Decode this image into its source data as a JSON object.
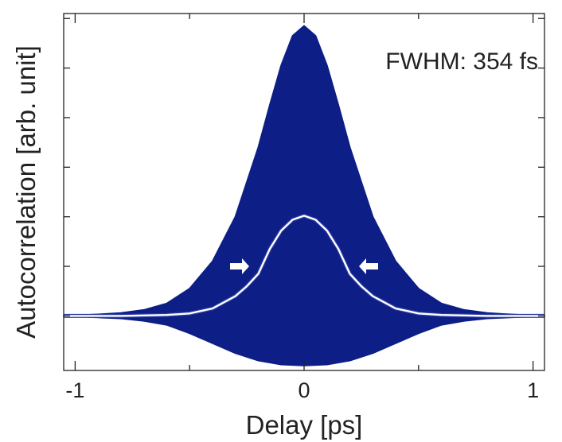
{
  "chart_data": {
    "type": "area",
    "title": "",
    "xlabel": "Delay [ps]",
    "ylabel": "Autocorrelation [arb. unit]",
    "xlim": [
      -1.05,
      1.05
    ],
    "ylim": [
      -0.1,
      7.1
    ],
    "x_ticks": [
      -1,
      0,
      1
    ],
    "x_tick_labels": [
      "-1",
      "0",
      "1"
    ],
    "y_ticks": [
      1,
      2,
      3,
      4,
      5,
      6,
      7
    ],
    "y_tick_labels_visible": false,
    "grid": false,
    "legend": "none",
    "annotation": "FWHM: 354 fs",
    "fwhm_fs": 354,
    "colors": {
      "fringe_fill": "#0d1f86",
      "envelope_line": "#ffffff",
      "arrows": "#ffffff",
      "axis": "#222222"
    },
    "series": [
      {
        "kind": "interferometric-envelope-upper",
        "x": [
          -1.05,
          -0.9,
          -0.8,
          -0.7,
          -0.6,
          -0.5,
          -0.4,
          -0.3,
          -0.2,
          -0.15,
          -0.1,
          -0.05,
          0,
          0.05,
          0.1,
          0.15,
          0.2,
          0.3,
          0.4,
          0.5,
          0.6,
          0.7,
          0.8,
          0.9,
          1.05
        ],
        "y": [
          1.0,
          1.03,
          1.06,
          1.12,
          1.25,
          1.55,
          2.1,
          3.0,
          4.4,
          5.25,
          6.05,
          6.65,
          6.85,
          6.65,
          6.05,
          5.25,
          4.4,
          3.0,
          2.1,
          1.55,
          1.25,
          1.12,
          1.06,
          1.03,
          1.0
        ]
      },
      {
        "kind": "interferometric-envelope-lower",
        "x": [
          -1.05,
          -0.9,
          -0.8,
          -0.7,
          -0.6,
          -0.5,
          -0.4,
          -0.3,
          -0.2,
          -0.1,
          0,
          0.1,
          0.2,
          0.3,
          0.4,
          0.5,
          0.6,
          0.7,
          0.8,
          0.9,
          1.05
        ],
        "y": [
          1.0,
          0.97,
          0.95,
          0.9,
          0.82,
          0.65,
          0.45,
          0.25,
          0.1,
          0.02,
          0.0,
          0.02,
          0.1,
          0.25,
          0.45,
          0.65,
          0.82,
          0.9,
          0.95,
          0.97,
          1.0
        ]
      },
      {
        "kind": "intensity-autocorrelation-fit",
        "x": [
          -1.05,
          -0.9,
          -0.8,
          -0.7,
          -0.6,
          -0.5,
          -0.4,
          -0.3,
          -0.25,
          -0.2,
          -0.15,
          -0.1,
          -0.05,
          0,
          0.05,
          0.1,
          0.15,
          0.2,
          0.25,
          0.3,
          0.4,
          0.5,
          0.6,
          0.7,
          0.8,
          0.9,
          1.05
        ],
        "y": [
          1.0,
          1.0,
          1.0,
          1.01,
          1.02,
          1.05,
          1.15,
          1.4,
          1.6,
          1.85,
          2.35,
          2.72,
          2.94,
          3.02,
          2.94,
          2.72,
          2.35,
          1.85,
          1.6,
          1.4,
          1.15,
          1.05,
          1.02,
          1.01,
          1.0,
          1.0,
          1.0
        ]
      }
    ],
    "fwhm_arrows": [
      {
        "x": -0.24,
        "y": 2.0,
        "direction": "right"
      },
      {
        "x": 0.24,
        "y": 2.0,
        "direction": "left"
      }
    ]
  }
}
